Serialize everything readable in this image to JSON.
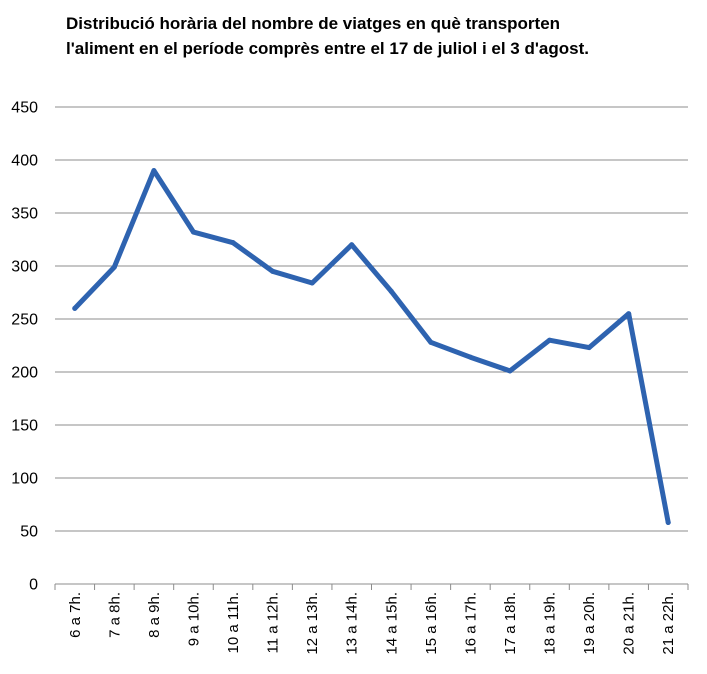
{
  "chart_data": {
    "type": "line",
    "title_lines": [
      "Distribució horària del nombre de viatges en què transporten",
      "l'aliment en el període comprès entre el 17 de juliol i el 3 d'agost."
    ],
    "categories": [
      "6 a 7h.",
      "7 a 8h.",
      "8 a 9h.",
      "9 a 10h.",
      "10 a 11h.",
      "11 a 12h.",
      "12 a 13h.",
      "13 a 14h.",
      "14 a 15h.",
      "15 a 16h.",
      "16 a 17h.",
      "17 a 18h.",
      "18 a 19h.",
      "19 a 20h.",
      "20 a 21h.",
      "21 a 22h."
    ],
    "values": [
      260,
      299,
      390,
      332,
      322,
      295,
      284,
      320,
      276,
      228,
      214,
      201,
      230,
      223,
      255,
      58
    ],
    "ylim": [
      0,
      450
    ],
    "yticks": [
      0,
      50,
      100,
      150,
      200,
      250,
      300,
      350,
      400,
      450
    ],
    "grid": true,
    "legend": false,
    "line_color": "#2E63B0"
  }
}
